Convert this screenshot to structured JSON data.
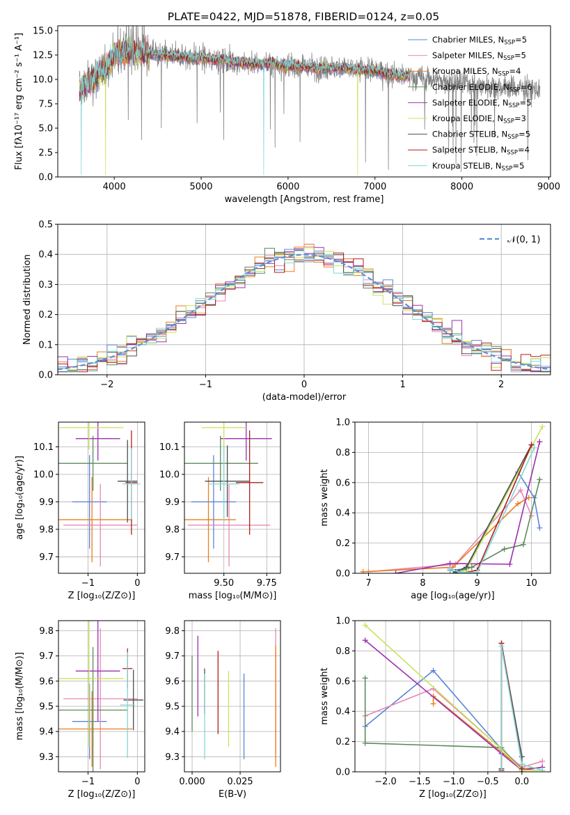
{
  "title": "PLATE=0422, MJD=51878, FIBERID=0124, z=0.05",
  "colors": {
    "Chabrier MILES": "#5b84d6",
    "Salpeter MILES": "#e588b4",
    "Kroupa MILES": "#e87d1e",
    "Chabrier ELODIE": "#5c8a5a",
    "Salpeter ELODIE": "#9b2fae",
    "Kroupa ELODIE": "#c9e35a",
    "Chabrier STELIB": "#4d4d4d",
    "Salpeter STELIB": "#b01e1e",
    "Kroupa STELIB": "#82d6d6",
    "data": "#808080",
    "normal": "#5b8fd6"
  },
  "legend_spectrum": [
    {
      "model": "Chabrier MILES",
      "prefix": "Chabrier MILES, N",
      "sub": "SSP",
      "suffix": "=5"
    },
    {
      "model": "Salpeter MILES",
      "prefix": "Salpeter MILES, N",
      "sub": "SSP",
      "suffix": "=5"
    },
    {
      "model": "Kroupa MILES",
      "prefix": "Kroupa MILES, N",
      "sub": "SSP",
      "suffix": "=4"
    },
    {
      "model": "Chabrier ELODIE",
      "prefix": "Chabrier ELODIE, N",
      "sub": "SSP",
      "suffix": "=6"
    },
    {
      "model": "Salpeter ELODIE",
      "prefix": "Salpeter ELODIE, N",
      "sub": "SSP",
      "suffix": "=5"
    },
    {
      "model": "Kroupa ELODIE",
      "prefix": "Kroupa ELODIE, N",
      "sub": "SSP",
      "suffix": "=3"
    },
    {
      "model": "Chabrier STELIB",
      "prefix": "Chabrier STELIB, N",
      "sub": "SSP",
      "suffix": "=5"
    },
    {
      "model": "Salpeter STELIB",
      "prefix": "Salpeter STELIB, N",
      "sub": "SSP",
      "suffix": "=4"
    },
    {
      "model": "Kroupa STELIB",
      "prefix": "Kroupa STELIB, N",
      "sub": "SSP",
      "suffix": "=5"
    }
  ],
  "legend_hist": {
    "prefix": "𝒩(0, 1)"
  },
  "chart_data": [
    {
      "id": "spectrum",
      "type": "line",
      "xlabel": "wavelength [Angstrom, rest frame]",
      "ylabel": "Flux [fλ10⁻¹⁷ erg cm⁻² s⁻¹ A⁻¹]",
      "xlim": [
        3350,
        9020
      ],
      "ylim": [
        0,
        15.5
      ],
      "xticks": [
        4000,
        5000,
        6000,
        7000,
        8000,
        9000
      ],
      "yticks": [
        0.0,
        2.5,
        5.0,
        7.5,
        10.0,
        12.5,
        15.0
      ],
      "xtick_labels": [
        "4000",
        "5000",
        "6000",
        "7000",
        "8000",
        "9000"
      ],
      "ytick_labels": [
        "0.0",
        "2.5",
        "5.0",
        "7.5",
        "10.0",
        "12.5",
        "15.0"
      ],
      "data_range": [
        3600,
        8900
      ],
      "model_range": [
        3600,
        7400
      ],
      "continuum": [
        [
          3600,
          8.8
        ],
        [
          3700,
          9.6
        ],
        [
          3800,
          10.5
        ],
        [
          3900,
          11.0
        ],
        [
          4000,
          12.6
        ],
        [
          4100,
          13.0
        ],
        [
          4200,
          12.8
        ],
        [
          4400,
          12.7
        ],
        [
          4600,
          12.4
        ],
        [
          4800,
          12.3
        ],
        [
          5000,
          12.2
        ],
        [
          5200,
          12.0
        ],
        [
          5400,
          11.8
        ],
        [
          5600,
          11.6
        ],
        [
          5800,
          11.6
        ],
        [
          6000,
          11.4
        ],
        [
          6200,
          11.3
        ],
        [
          6400,
          11.1
        ],
        [
          6600,
          11.2
        ],
        [
          6800,
          11.0
        ],
        [
          7000,
          10.9
        ],
        [
          7200,
          10.5
        ],
        [
          7400,
          10.3
        ],
        [
          7600,
          10.1
        ],
        [
          7800,
          9.8
        ],
        [
          8000,
          9.7
        ],
        [
          8200,
          9.4
        ],
        [
          8400,
          9.3
        ],
        [
          8600,
          9.1
        ],
        [
          8800,
          9.0
        ],
        [
          8900,
          8.9
        ]
      ]
    },
    {
      "id": "residuals",
      "type": "step-histogram",
      "xlabel": "(data-model)/error",
      "ylabel": "Normed distribution",
      "xlim": [
        -2.5,
        2.5
      ],
      "ylim": [
        0,
        0.5
      ],
      "xticks": [
        -2,
        -1,
        0,
        1,
        2
      ],
      "yticks": [
        0.0,
        0.1,
        0.2,
        0.3,
        0.4,
        0.5
      ],
      "xtick_labels": [
        "−2",
        "−1",
        "0",
        "1",
        "2"
      ],
      "ytick_labels": [
        "0.0",
        "0.1",
        "0.2",
        "0.3",
        "0.4",
        "0.5"
      ],
      "bin_width": 0.1,
      "bin_start": -2.5,
      "normal_curve": {
        "mean": 0,
        "sigma": 1
      }
    },
    {
      "id": "age_vs_Z",
      "type": "errorbar",
      "xlabel": "Z [log₁₀(Z/Z⊙)]",
      "ylabel": "age  [log₁₀(age/yr)]",
      "xlim": [
        -1.6,
        0.15
      ],
      "ylim": [
        9.64,
        10.19
      ],
      "xticks": [
        -1,
        0
      ],
      "yticks": [
        9.7,
        9.8,
        9.9,
        10.0,
        10.1
      ],
      "xtick_labels": [
        "−1",
        "0"
      ],
      "ytick_labels": [
        "9.7",
        "9.8",
        "9.9",
        "10.0",
        "10.1"
      ],
      "points": [
        {
          "model": "Chabrier MILES",
          "x": -0.97,
          "xerr": 0.35,
          "y": 9.9,
          "yerr": 0.17
        },
        {
          "model": "Salpeter MILES",
          "x": -0.75,
          "xerr": 0.75,
          "y": 9.815,
          "yerr": 0.15
        },
        {
          "model": "Kroupa MILES",
          "x": -0.92,
          "xerr": 0.82,
          "y": 9.835,
          "yerr": 0.155
        },
        {
          "model": "Chabrier ELODIE",
          "x": -0.9,
          "xerr": 0.7,
          "y": 10.04,
          "yerr": 0.1
        },
        {
          "model": "Salpeter ELODIE",
          "x": -0.8,
          "xerr": 0.45,
          "y": 10.13,
          "yerr": 0.08
        },
        {
          "model": "Kroupa ELODIE",
          "x": -0.98,
          "xerr": 0.7,
          "y": 10.17,
          "yerr": 0.08
        },
        {
          "model": "Chabrier STELIB",
          "x": -0.2,
          "xerr": 0.2,
          "y": 9.975,
          "yerr": 0.15
        },
        {
          "model": "Salpeter STELIB",
          "x": -0.12,
          "xerr": 0.12,
          "y": 9.97,
          "yerr": 0.19
        },
        {
          "model": "Kroupa STELIB",
          "x": -0.12,
          "xerr": 0.18,
          "y": 9.965,
          "yerr": 0.13
        }
      ]
    },
    {
      "id": "age_vs_mass",
      "type": "errorbar",
      "xlabel": "mass [log₁₀(M/M⊙)]",
      "ylabel": "",
      "xlim": [
        9.27,
        9.83
      ],
      "ylim": [
        9.64,
        10.19
      ],
      "xticks": [
        9.25,
        9.5,
        9.75
      ],
      "yticks": [
        9.7,
        9.8,
        9.9,
        10.0,
        10.1
      ],
      "xtick_labels": [
        "9.25",
        "9.50",
        "9.75"
      ],
      "ytick_labels": [
        "9.7",
        "9.8",
        "9.9",
        "10.0",
        "10.1"
      ],
      "points": [
        {
          "model": "Chabrier MILES",
          "x": 9.44,
          "xerr": 0.13,
          "y": 9.9,
          "yerr": 0.17
        },
        {
          "model": "Salpeter MILES",
          "x": 9.53,
          "xerr": 0.24,
          "y": 9.815,
          "yerr": 0.15
        },
        {
          "model": "Kroupa MILES",
          "x": 9.41,
          "xerr": 0.16,
          "y": 9.835,
          "yerr": 0.155
        },
        {
          "model": "Chabrier ELODIE",
          "x": 9.48,
          "xerr": 0.22,
          "y": 10.04,
          "yerr": 0.1
        },
        {
          "model": "Salpeter ELODIE",
          "x": 9.63,
          "xerr": 0.15,
          "y": 10.13,
          "yerr": 0.08
        },
        {
          "model": "Kroupa ELODIE",
          "x": 9.5,
          "xerr": 0.13,
          "y": 10.17,
          "yerr": 0.08
        },
        {
          "model": "Chabrier STELIB",
          "x": 9.52,
          "xerr": 0.13,
          "y": 9.975,
          "yerr": 0.13
        },
        {
          "model": "Salpeter STELIB",
          "x": 9.65,
          "xerr": 0.08,
          "y": 9.97,
          "yerr": 0.19
        },
        {
          "model": "Kroupa STELIB",
          "x": 9.5,
          "xerr": 0.09,
          "y": 9.965,
          "yerr": 0.14
        }
      ]
    },
    {
      "id": "weight_vs_age",
      "type": "line",
      "xlabel": "age  [log₁₀(age/yr)]",
      "ylabel": "mass weight",
      "xlim": [
        6.75,
        10.35
      ],
      "ylim": [
        0,
        1.0
      ],
      "xticks": [
        7,
        8,
        9,
        10
      ],
      "yticks": [
        0.0,
        0.2,
        0.4,
        0.6,
        0.8,
        1.0
      ],
      "xtick_labels": [
        "7",
        "8",
        "9",
        "10"
      ],
      "ytick_labels": [
        "0.0",
        "0.2",
        "0.4",
        "0.6",
        "0.8",
        "1.0"
      ],
      "series": [
        {
          "model": "Chabrier MILES",
          "x": [
            8.5,
            8.8,
            9.75,
            10.05,
            10.15
          ],
          "y": [
            0.02,
            0.03,
            0.67,
            0.5,
            0.3
          ]
        },
        {
          "model": "Salpeter MILES",
          "x": [
            7.0,
            8.6,
            9.8,
            10.0
          ],
          "y": [
            0.01,
            0.06,
            0.55,
            0.38
          ]
        },
        {
          "model": "Kroupa MILES",
          "x": [
            6.9,
            8.55,
            9.75,
            9.95
          ],
          "y": [
            0.01,
            0.04,
            0.46,
            0.5
          ]
        },
        {
          "model": "Chabrier ELODIE",
          "x": [
            8.6,
            8.9,
            9.5,
            9.85,
            10.15
          ],
          "y": [
            0.005,
            0.04,
            0.16,
            0.19,
            0.62
          ]
        },
        {
          "model": "Salpeter ELODIE",
          "x": [
            7.5,
            8.5,
            9.6,
            10.15
          ],
          "y": [
            0.0,
            0.065,
            0.06,
            0.87
          ]
        },
        {
          "model": "Kroupa ELODIE",
          "x": [
            8.7,
            8.8,
            10.2
          ],
          "y": [
            0.005,
            0.02,
            0.97
          ]
        },
        {
          "model": "Chabrier STELIB",
          "x": [
            8.6,
            8.8,
            10.0
          ],
          "y": [
            0.01,
            0.04,
            0.85
          ]
        },
        {
          "model": "Salpeter STELIB",
          "x": [
            8.7,
            9.0,
            10.0
          ],
          "y": [
            0.0,
            0.02,
            0.85
          ]
        },
        {
          "model": "Kroupa STELIB",
          "x": [
            8.5,
            8.7,
            9.0,
            10.05
          ],
          "y": [
            0.03,
            0.005,
            0.005,
            0.83
          ]
        }
      ]
    },
    {
      "id": "mass_vs_Z",
      "type": "errorbar",
      "xlabel": "Z [log₁₀(Z/Z⊙)]",
      "ylabel": "mass [log₁₀(M/M⊙)]",
      "xlim": [
        -1.6,
        0.15
      ],
      "ylim": [
        9.24,
        9.84
      ],
      "xticks": [
        -1,
        0
      ],
      "yticks": [
        9.3,
        9.4,
        9.5,
        9.6,
        9.7,
        9.8
      ],
      "xtick_labels": [
        "−1",
        "0"
      ],
      "ytick_labels": [
        "9.3",
        "9.4",
        "9.5",
        "9.6",
        "9.7",
        "9.8"
      ],
      "points": [
        {
          "model": "Chabrier MILES",
          "x": -0.97,
          "xerr": 0.35,
          "y": 9.44,
          "yerr": 0.15
        },
        {
          "model": "Salpeter MILES",
          "x": -0.75,
          "xerr": 0.75,
          "y": 9.53,
          "yerr": 0.28
        },
        {
          "model": "Kroupa MILES",
          "x": -0.92,
          "xerr": 0.82,
          "y": 9.41,
          "yerr": 0.15
        },
        {
          "model": "Chabrier ELODIE",
          "x": -0.9,
          "xerr": 0.7,
          "y": 9.485,
          "yerr": 0.25
        },
        {
          "model": "Salpeter ELODIE",
          "x": -0.8,
          "xerr": 0.45,
          "y": 9.64,
          "yerr": 0.2
        },
        {
          "model": "Kroupa ELODIE",
          "x": -0.98,
          "xerr": 0.7,
          "y": 9.61,
          "yerr": 0.27
        },
        {
          "model": "Chabrier STELIB",
          "x": -0.08,
          "xerr": 0.2,
          "y": 9.525,
          "yerr": 0.12
        },
        {
          "model": "Salpeter STELIB",
          "x": -0.2,
          "xerr": 0.1,
          "y": 9.65,
          "yerr": 0.08
        },
        {
          "model": "Kroupa STELIB",
          "x": -0.2,
          "xerr": 0.15,
          "y": 9.505,
          "yerr": 0.21
        }
      ]
    },
    {
      "id": "mass_vs_EBV",
      "type": "errorbar",
      "xlabel": "E(B-V)",
      "ylabel": "",
      "xlim": [
        -0.004,
        0.046
      ],
      "ylim": [
        9.24,
        9.84
      ],
      "xticks": [
        0.0,
        0.025
      ],
      "yticks": [
        9.3,
        9.4,
        9.5,
        9.6,
        9.7,
        9.8
      ],
      "xtick_labels": [
        "0.000",
        "0.025"
      ],
      "ytick_labels": [
        "9.3",
        "9.4",
        "9.5",
        "9.6",
        "9.7",
        "9.8"
      ],
      "points": [
        {
          "model": "Chabrier MILES",
          "x": 0.027,
          "xerr": 0,
          "y": 9.46,
          "yerr": 0.17
        },
        {
          "model": "Salpeter MILES",
          "x": 0.0435,
          "xerr": 0,
          "y": 9.56,
          "yerr": 0.25
        },
        {
          "model": "Kroupa MILES",
          "x": 0.0435,
          "xerr": 0,
          "y": 9.5,
          "yerr": 0.24
        },
        {
          "model": "Chabrier ELODIE",
          "x": 0.0,
          "xerr": 0,
          "y": 9.55,
          "yerr": 0.15
        },
        {
          "model": "Salpeter ELODIE",
          "x": 0.003,
          "xerr": 0,
          "y": 9.62,
          "yerr": 0.16
        },
        {
          "model": "Kroupa ELODIE",
          "x": 0.019,
          "xerr": 0,
          "y": 9.49,
          "yerr": 0.15
        },
        {
          "model": "Chabrier STELIB",
          "x": 0.0065,
          "xerr": 0,
          "y": 9.56,
          "yerr": 0.09
        },
        {
          "model": "Salpeter STELIB",
          "x": 0.0135,
          "xerr": 0,
          "y": 9.555,
          "yerr": 0.165
        },
        {
          "model": "Kroupa STELIB",
          "x": 0.0065,
          "xerr": 0,
          "y": 9.46,
          "yerr": 0.17
        }
      ]
    },
    {
      "id": "weight_vs_Z",
      "type": "line",
      "xlabel": "Z [log₁₀(Z/Z⊙)]",
      "ylabel": "mass weight",
      "xlim": [
        -2.45,
        0.42
      ],
      "ylim": [
        0,
        1.0
      ],
      "xticks": [
        -2.0,
        -1.5,
        -1.0,
        -0.5,
        0.0
      ],
      "yticks": [
        0.0,
        0.2,
        0.4,
        0.6,
        0.8,
        1.0
      ],
      "xtick_labels": [
        "−2.0",
        "−1.5",
        "−1.0",
        "−0.5",
        "0.0"
      ],
      "ytick_labels": [
        "0.0",
        "0.2",
        "0.4",
        "0.6",
        "0.8",
        "1.0"
      ],
      "series": [
        {
          "model": "Chabrier MILES",
          "x": [
            -2.3,
            -1.3,
            -0.3,
            0.0
          ],
          "y": [
            0.3,
            0.67,
            0.15,
            0.02
          ]
        },
        {
          "model": "Salpeter MILES",
          "x": [
            -2.3,
            -1.3,
            0.0,
            0.3
          ],
          "y": [
            0.37,
            0.55,
            0.03,
            0.07
          ]
        },
        {
          "model": "Kroupa MILES",
          "x": [
            -1.3,
            -1.3,
            0.0,
            0.3
          ],
          "y": [
            0.45,
            0.5,
            0.02,
            0.03
          ]
        },
        {
          "model": "Chabrier ELODIE",
          "x": [
            -2.3,
            -2.3,
            -0.3,
            0.0
          ],
          "y": [
            0.62,
            0.19,
            0.16,
            0.01
          ]
        },
        {
          "model": "Salpeter ELODIE",
          "x": [
            -2.3,
            -0.3,
            0.0,
            0.3
          ],
          "y": [
            0.87,
            0.12,
            0.01,
            0.03
          ]
        },
        {
          "model": "Kroupa ELODIE",
          "x": [
            -2.3,
            -0.3,
            0.0,
            0.3
          ],
          "y": [
            0.97,
            0.15,
            0.01,
            0.01
          ]
        },
        {
          "model": "Chabrier STELIB",
          "x": [
            -0.3,
            -0.3,
            0.0,
            0.0
          ],
          "y": [
            0.02,
            0.85,
            0.1,
            0.02
          ]
        },
        {
          "model": "Salpeter STELIB",
          "x": [
            -0.3,
            -0.3,
            0.0,
            0.0
          ],
          "y": [
            0.01,
            0.85,
            0.05,
            0.0
          ]
        },
        {
          "model": "Kroupa STELIB",
          "x": [
            -0.3,
            -0.3,
            0.0,
            0.3
          ],
          "y": [
            0.0,
            0.83,
            0.05,
            0.01
          ]
        }
      ]
    }
  ]
}
